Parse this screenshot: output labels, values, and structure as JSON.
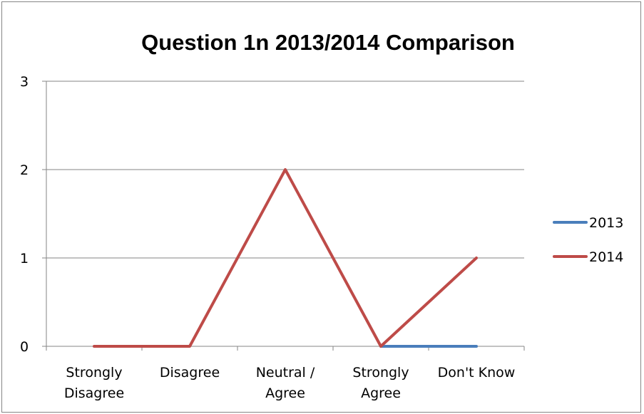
{
  "chart_data": {
    "type": "line",
    "title": "Question 1n 2013/2014 Comparison",
    "xlabel": "",
    "ylabel": "",
    "categories": [
      [
        "Strongly",
        "Disagree"
      ],
      [
        "Disagree"
      ],
      [
        "Neutral /",
        "Agree"
      ],
      [
        "Strongly",
        "Agree"
      ],
      [
        "Don't Know"
      ]
    ],
    "ylim": [
      0,
      3
    ],
    "yticks": [
      "0",
      "1",
      "2",
      "3"
    ],
    "grid": true,
    "legend_position": "right",
    "series": [
      {
        "name": "2013",
        "color": "#4a7ebb",
        "values": [
          null,
          null,
          null,
          0,
          0
        ]
      },
      {
        "name": "2014",
        "color": "#be4b48",
        "values": [
          0,
          0,
          2,
          0,
          1
        ]
      }
    ]
  }
}
